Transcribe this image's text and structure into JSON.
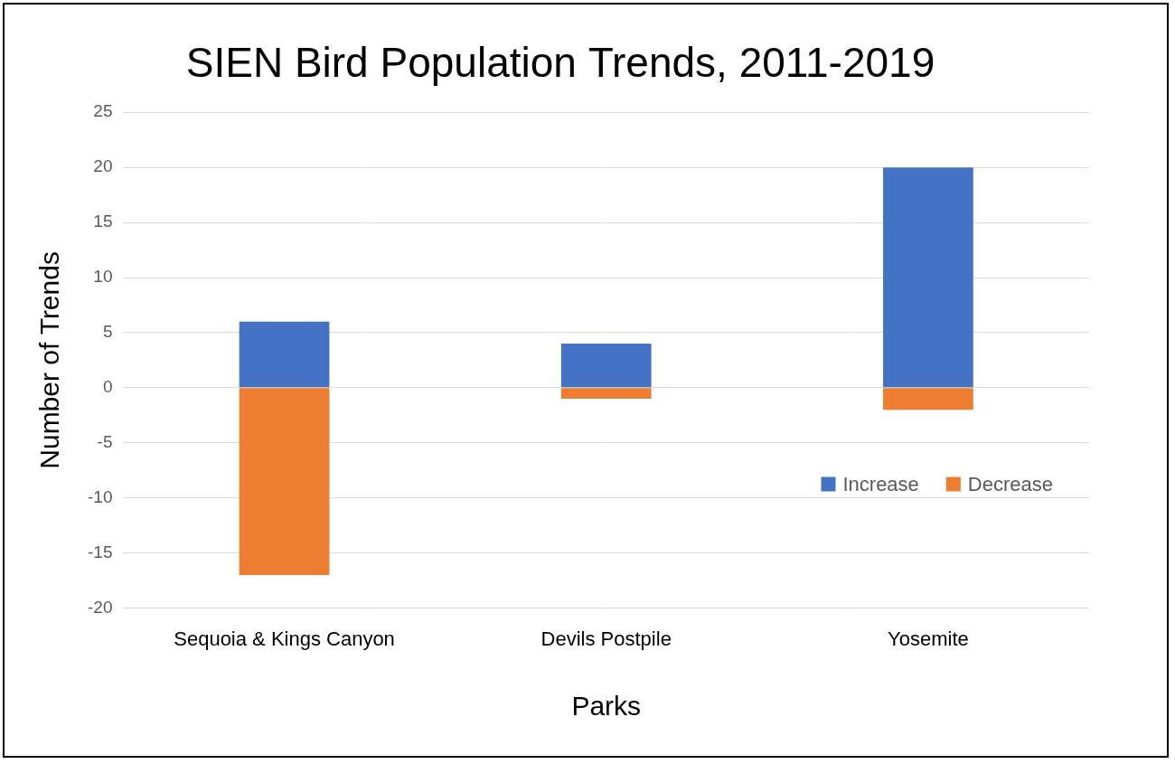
{
  "chart_data": {
    "type": "bar",
    "title": "SIEN Bird Population Trends, 2011-2019",
    "x_label": "Parks",
    "y_label": "Number of Trends",
    "categories": [
      "Sequoia & Kings Canyon",
      "Devils Postpile",
      "Yosemite"
    ],
    "series": [
      {
        "name": "Increase",
        "color": "#4472c4",
        "values": [
          6,
          4,
          20
        ]
      },
      {
        "name": "Decrease",
        "color": "#ed7d31",
        "values": [
          -17,
          -1,
          -2
        ]
      }
    ],
    "stacked": true,
    "ylim": [
      -20,
      25
    ],
    "yticks": [
      -20,
      -15,
      -10,
      -5,
      0,
      5,
      10,
      15,
      20,
      25
    ],
    "grid": true,
    "legend": "lower right"
  }
}
